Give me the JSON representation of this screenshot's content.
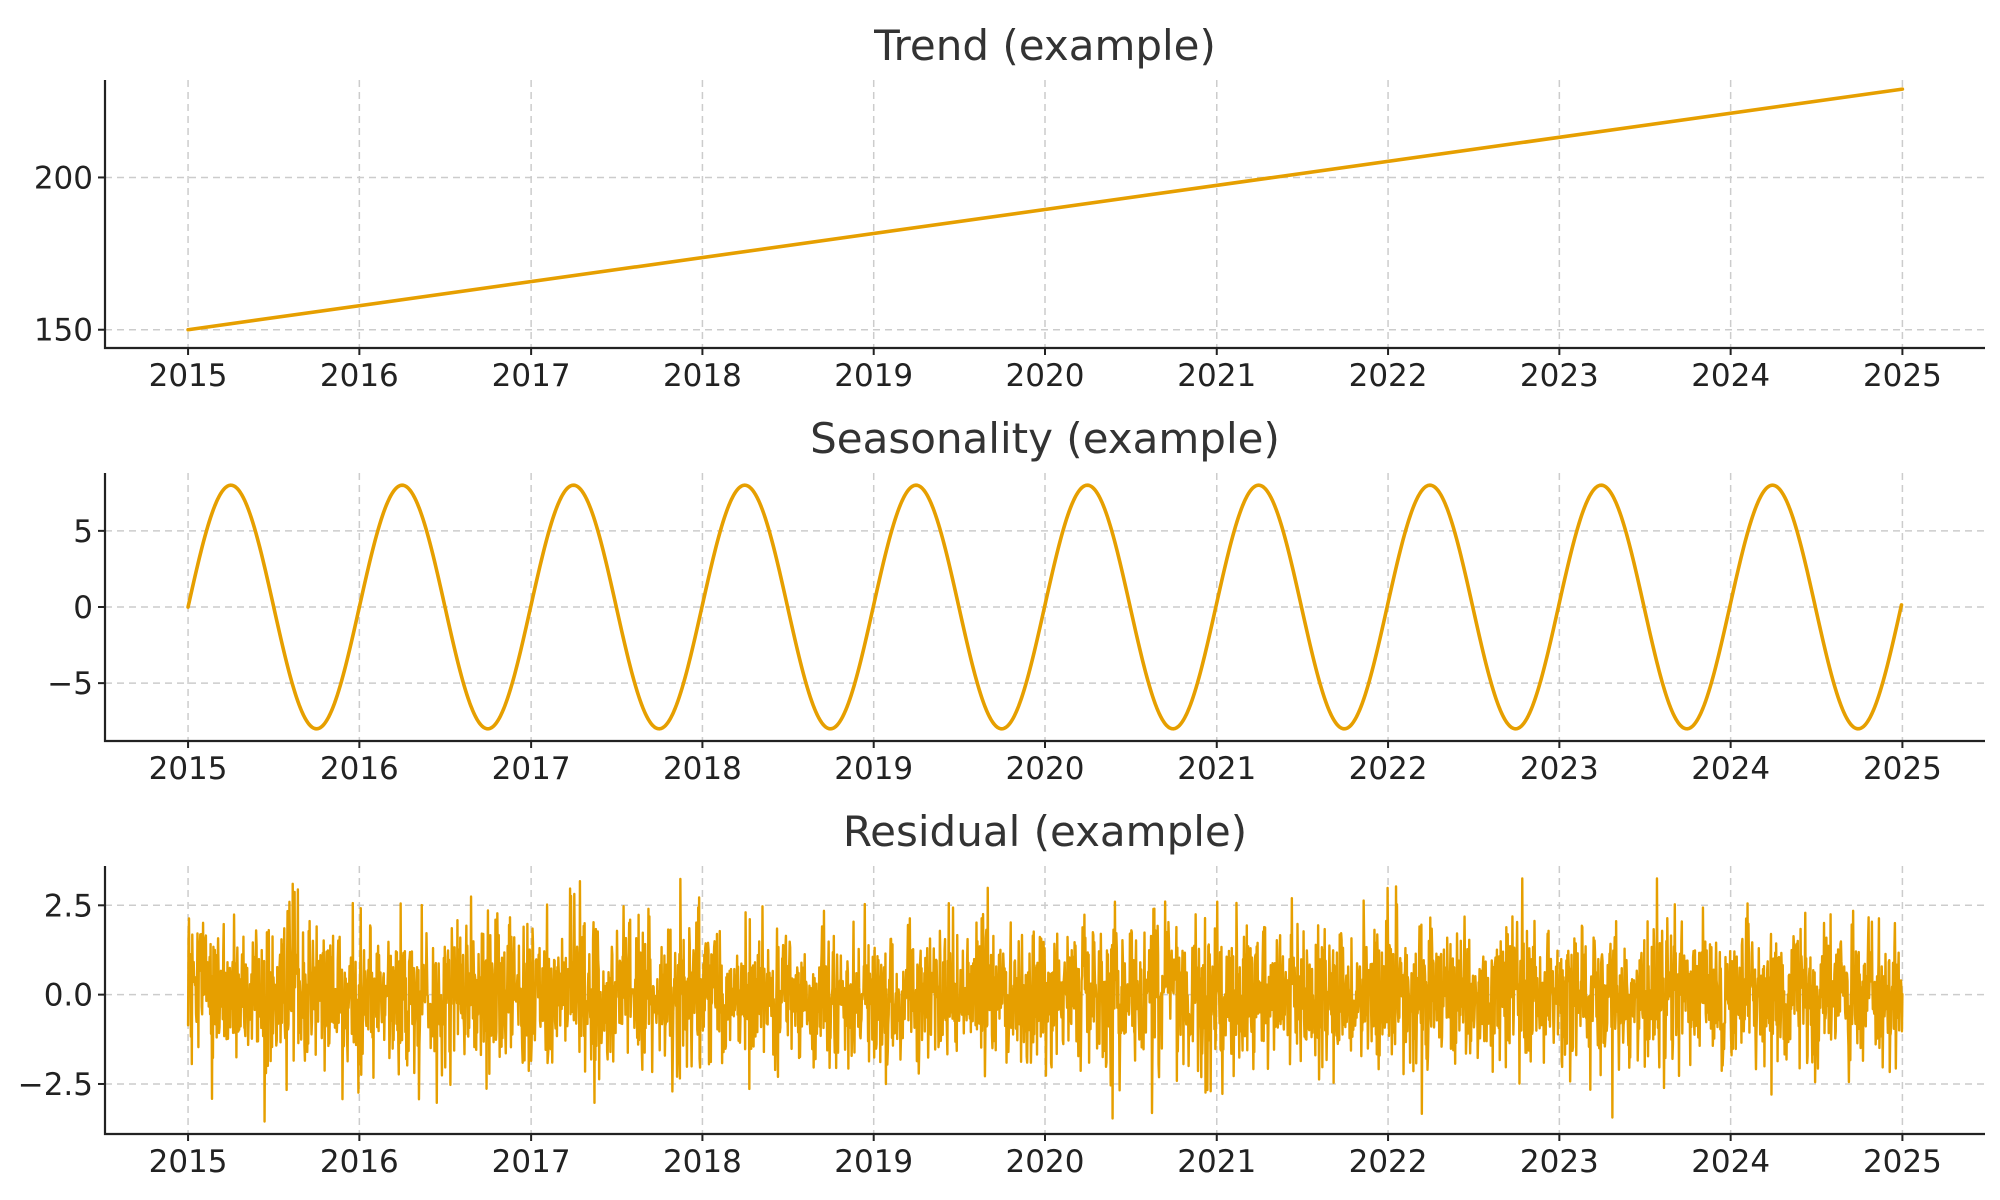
{
  "chart_data": [
    {
      "type": "line",
      "title": "Trend (example)",
      "xlabel": "",
      "ylabel": "",
      "color": "#E69F00",
      "grid": true,
      "x_ticks": [
        "2015",
        "2016",
        "2017",
        "2018",
        "2019",
        "2020",
        "2021",
        "2022",
        "2023",
        "2024",
        "2025"
      ],
      "xlim": [
        "2014-07-08",
        "2025-06-26"
      ],
      "ylim": [
        144,
        232
      ],
      "y_ticks": [
        {
          "value": 150,
          "label": "150"
        },
        {
          "value": 200,
          "label": "200"
        }
      ],
      "series": [
        {
          "x": [
            "2015-01-01",
            "2025-01-01"
          ],
          "y": [
            150,
            229
          ]
        }
      ]
    },
    {
      "type": "line",
      "title": "Seasonality (example)",
      "xlabel": "",
      "ylabel": "",
      "color": "#E69F00",
      "grid": true,
      "x_ticks": [
        "2015",
        "2016",
        "2017",
        "2018",
        "2019",
        "2020",
        "2021",
        "2022",
        "2023",
        "2024",
        "2025"
      ],
      "xlim": [
        "2014-07-08",
        "2025-06-26"
      ],
      "ylim": [
        -8.8,
        8.8
      ],
      "y_ticks": [
        {
          "value": -5,
          "label": "−5"
        },
        {
          "value": 0,
          "label": "0"
        },
        {
          "value": 5,
          "label": "5"
        }
      ],
      "series": [
        {
          "function": "sine",
          "amplitude": 8,
          "period_days": 365,
          "x_start": "2015-01-01",
          "x_end": "2025-01-01",
          "start_value": 0
        }
      ]
    },
    {
      "type": "line",
      "title": "Residual (example)",
      "xlabel": "",
      "ylabel": "",
      "color": "#E69F00",
      "grid": true,
      "x_ticks": [
        "2015",
        "2016",
        "2017",
        "2018",
        "2019",
        "2020",
        "2021",
        "2022",
        "2023",
        "2024",
        "2025"
      ],
      "xlim": [
        "2014-07-08",
        "2025-06-26"
      ],
      "ylim": [
        -3.9,
        3.6
      ],
      "y_ticks": [
        {
          "value": -2.5,
          "label": "−2.5"
        },
        {
          "value": 0,
          "label": "0.0"
        },
        {
          "value": 2.5,
          "label": "2.5"
        }
      ],
      "series": [
        {
          "function": "gaussian-noise",
          "std": 1.0,
          "x_start": "2015-01-01",
          "x_end": "2025-01-01",
          "sample": "daily"
        }
      ]
    }
  ]
}
